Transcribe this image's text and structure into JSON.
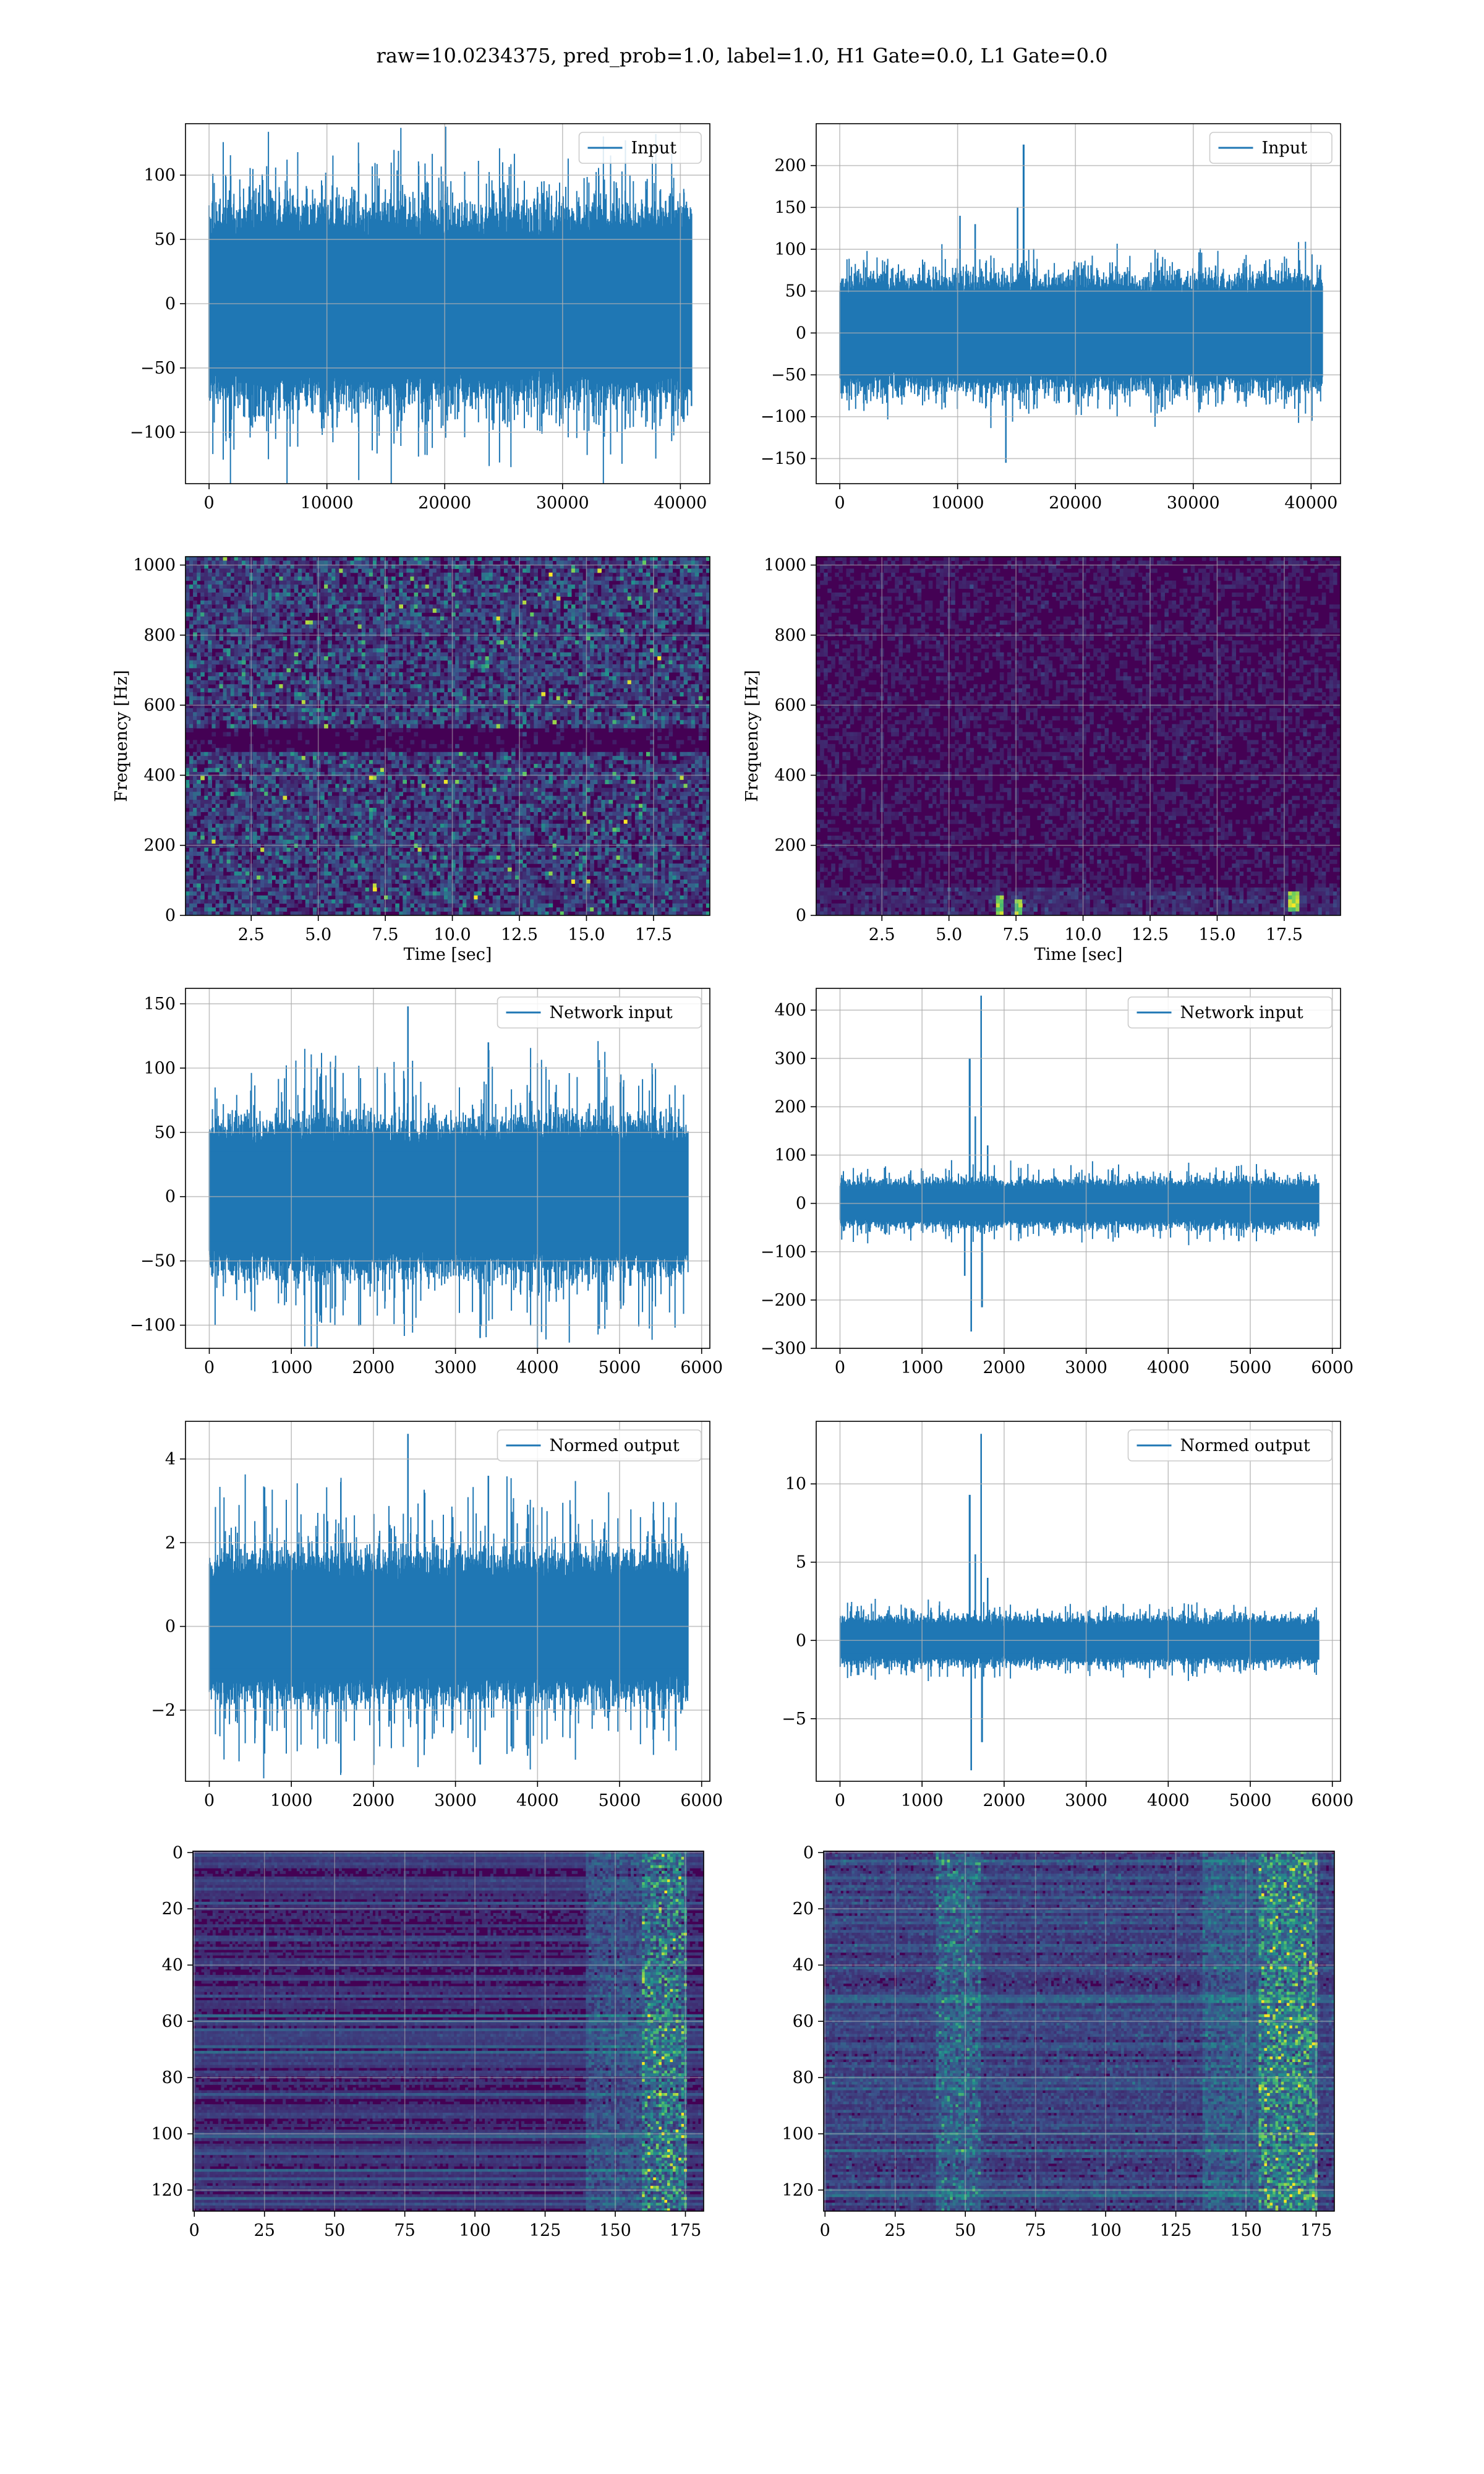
{
  "figure": {
    "suptitle": "raw=10.0234375, pred_prob=1.0, label=1.0, H1 Gate=0.0, L1 Gate=0.0",
    "colors": {
      "line": "#1f77b4",
      "grid": "#b0b0b0",
      "cmap": [
        "#440154",
        "#3b528b",
        "#21918c",
        "#5ec962",
        "#fde725"
      ]
    }
  },
  "chart_data": [
    {
      "id": "raw-H1",
      "type": "line",
      "legend": "Input",
      "xlim": [
        -2000,
        42500
      ],
      "ylim": [
        -140,
        140
      ],
      "xticks": [
        0,
        10000,
        20000,
        30000,
        40000
      ],
      "xtick_labels": [
        "0",
        "10000",
        "20000",
        "30000",
        "40000"
      ],
      "yticks": [
        -100,
        -50,
        0,
        50,
        100
      ],
      "ytick_labels": [
        "−100",
        "−50",
        "0",
        "50",
        "100"
      ],
      "grid": true,
      "legend_placement": "upper right",
      "signal": {
        "n": 40960,
        "env": 45,
        "peak": 130,
        "spikes": []
      }
    },
    {
      "id": "raw-L1",
      "type": "line",
      "legend": "Input",
      "xlim": [
        -2000,
        42500
      ],
      "ylim": [
        -180,
        250
      ],
      "xticks": [
        0,
        10000,
        20000,
        30000,
        40000
      ],
      "xtick_labels": [
        "0",
        "10000",
        "20000",
        "30000",
        "40000"
      ],
      "yticks": [
        -150,
        -100,
        -50,
        0,
        50,
        100,
        150,
        200
      ],
      "ytick_labels": [
        "−150",
        "−100",
        "−50",
        "0",
        "50",
        "100",
        "150",
        "200"
      ],
      "grid": true,
      "legend_placement": "upper right",
      "signal": {
        "n": 40960,
        "env": 40,
        "peak": 100,
        "spikes": [
          [
            15600,
            225
          ],
          [
            14100,
            -155
          ],
          [
            10200,
            140
          ],
          [
            15100,
            150
          ],
          [
            11500,
            130
          ]
        ]
      }
    },
    {
      "id": "spec-H1",
      "type": "heatmap",
      "xlabel": "Time [sec]",
      "ylabel": "Frequency [Hz]",
      "xlim": [
        0.05,
        19.6
      ],
      "ylim": [
        0,
        1024
      ],
      "xticks": [
        2.5,
        5.0,
        7.5,
        10.0,
        12.5,
        15.0,
        17.5
      ],
      "xtick_labels": [
        "2.5",
        "5.0",
        "7.5",
        "10.0",
        "12.5",
        "15.0",
        "17.5"
      ],
      "yticks": [
        0,
        200,
        400,
        600,
        800,
        1000
      ],
      "ytick_labels": [
        "0",
        "200",
        "400",
        "600",
        "800",
        "1000"
      ],
      "grid": true,
      "pattern": "noisy-uniform",
      "band": {
        "freq": 500,
        "width": 30
      }
    },
    {
      "id": "spec-L1",
      "type": "heatmap",
      "xlabel": "Time [sec]",
      "ylabel": "Frequency [Hz]",
      "xlim": [
        0.05,
        19.6
      ],
      "ylim": [
        0,
        1024
      ],
      "xticks": [
        2.5,
        5.0,
        7.5,
        10.0,
        12.5,
        15.0,
        17.5
      ],
      "xtick_labels": [
        "2.5",
        "5.0",
        "7.5",
        "10.0",
        "12.5",
        "15.0",
        "17.5"
      ],
      "yticks": [
        0,
        200,
        400,
        600,
        800,
        1000
      ],
      "ytick_labels": [
        "0",
        "200",
        "400",
        "600",
        "800",
        "1000"
      ],
      "grid": true,
      "pattern": "dark-quiet",
      "blips": [
        [
          6.9,
          30
        ],
        [
          7.6,
          20
        ],
        [
          17.9,
          40
        ]
      ]
    },
    {
      "id": "net-H1",
      "type": "line",
      "legend": "Network input",
      "xlim": [
        -290,
        6100
      ],
      "ylim": [
        -118,
        162
      ],
      "xticks": [
        0,
        1000,
        2000,
        3000,
        4000,
        5000,
        6000
      ],
      "xtick_labels": [
        "0",
        "1000",
        "2000",
        "3000",
        "4000",
        "5000",
        "6000"
      ],
      "yticks": [
        -100,
        -50,
        0,
        50,
        100,
        150
      ],
      "ytick_labels": [
        "−100",
        "−50",
        "0",
        "50",
        "100",
        "150"
      ],
      "grid": true,
      "legend_placement": "upper right",
      "signal": {
        "n": 5835,
        "env": 35,
        "peak": 110,
        "spikes": [
          [
            2420,
            148
          ],
          [
            3400,
            120
          ],
          [
            3300,
            -110
          ]
        ]
      }
    },
    {
      "id": "net-L1",
      "type": "line",
      "legend": "Network input",
      "xlim": [
        -290,
        6100
      ],
      "ylim": [
        -300,
        445
      ],
      "xticks": [
        0,
        1000,
        2000,
        3000,
        4000,
        5000,
        6000
      ],
      "xtick_labels": [
        "0",
        "1000",
        "2000",
        "3000",
        "4000",
        "5000",
        "6000"
      ],
      "yticks": [
        -300,
        -200,
        -100,
        0,
        100,
        200,
        300,
        400
      ],
      "ytick_labels": [
        "−300",
        "−200",
        "−100",
        "0",
        "100",
        "200",
        "300",
        "400"
      ],
      "grid": true,
      "legend_placement": "upper right",
      "signal": {
        "n": 5835,
        "env": 28,
        "peak": 80,
        "spikes": [
          [
            1720,
            430
          ],
          [
            1580,
            300
          ],
          [
            1650,
            180
          ],
          [
            1600,
            -265
          ],
          [
            1730,
            -215
          ],
          [
            1800,
            120
          ],
          [
            1520,
            -150
          ]
        ]
      }
    },
    {
      "id": "norm-H1",
      "type": "line",
      "legend": "Normed output",
      "xlim": [
        -290,
        6100
      ],
      "ylim": [
        -3.7,
        4.9
      ],
      "xticks": [
        0,
        1000,
        2000,
        3000,
        4000,
        5000,
        6000
      ],
      "xtick_labels": [
        "0",
        "1000",
        "2000",
        "3000",
        "4000",
        "5000",
        "6000"
      ],
      "yticks": [
        -2,
        0,
        2,
        4
      ],
      "ytick_labels": [
        "−2",
        "0",
        "2",
        "4"
      ],
      "grid": true,
      "legend_placement": "upper right",
      "signal": {
        "n": 5835,
        "env": 1.0,
        "peak": 3.3,
        "spikes": [
          [
            2420,
            4.6
          ],
          [
            3400,
            3.6
          ],
          [
            3300,
            -3.3
          ]
        ]
      }
    },
    {
      "id": "norm-L1",
      "type": "line",
      "legend": "Normed output",
      "xlim": [
        -290,
        6100
      ],
      "ylim": [
        -9.0,
        14.0
      ],
      "xticks": [
        0,
        1000,
        2000,
        3000,
        4000,
        5000,
        6000
      ],
      "xtick_labels": [
        "0",
        "1000",
        "2000",
        "3000",
        "4000",
        "5000",
        "6000"
      ],
      "yticks": [
        -5,
        0,
        5,
        10
      ],
      "ytick_labels": [
        "−5",
        "0",
        "5",
        "10"
      ],
      "grid": true,
      "legend_placement": "upper right",
      "signal": {
        "n": 5835,
        "env": 0.85,
        "peak": 2.4,
        "spikes": [
          [
            1720,
            13.2
          ],
          [
            1580,
            9.3
          ],
          [
            1650,
            5.5
          ],
          [
            1600,
            -8.3
          ],
          [
            1730,
            -6.5
          ],
          [
            1800,
            4.0
          ]
        ]
      }
    },
    {
      "id": "out-H1",
      "type": "heatmap",
      "xlim": [
        -0.5,
        181.5
      ],
      "ylim": [
        127.5,
        -0.5
      ],
      "xticks": [
        0,
        25,
        50,
        75,
        100,
        125,
        150,
        175
      ],
      "xtick_labels": [
        "0",
        "25",
        "50",
        "75",
        "100",
        "125",
        "150",
        "175"
      ],
      "yticks": [
        0,
        20,
        40,
        60,
        80,
        100,
        120
      ],
      "ytick_labels": [
        "0",
        "20",
        "40",
        "60",
        "80",
        "100",
        "120"
      ],
      "grid": true,
      "pattern": "rows-bright-right",
      "hot_cols": [
        160,
        175
      ]
    },
    {
      "id": "out-L1",
      "type": "heatmap",
      "xlim": [
        -0.5,
        181.5
      ],
      "ylim": [
        127.5,
        -0.5
      ],
      "xticks": [
        0,
        25,
        50,
        75,
        100,
        125,
        150,
        175
      ],
      "xtick_labels": [
        "0",
        "25",
        "50",
        "75",
        "100",
        "125",
        "150",
        "175"
      ],
      "yticks": [
        0,
        20,
        40,
        60,
        80,
        100,
        120
      ],
      "ytick_labels": [
        "0",
        "20",
        "40",
        "60",
        "80",
        "100",
        "120"
      ],
      "grid": true,
      "pattern": "rows-bright-right-busy",
      "hot_cols": [
        155,
        175
      ],
      "mid_cols": [
        40,
        55
      ]
    }
  ]
}
